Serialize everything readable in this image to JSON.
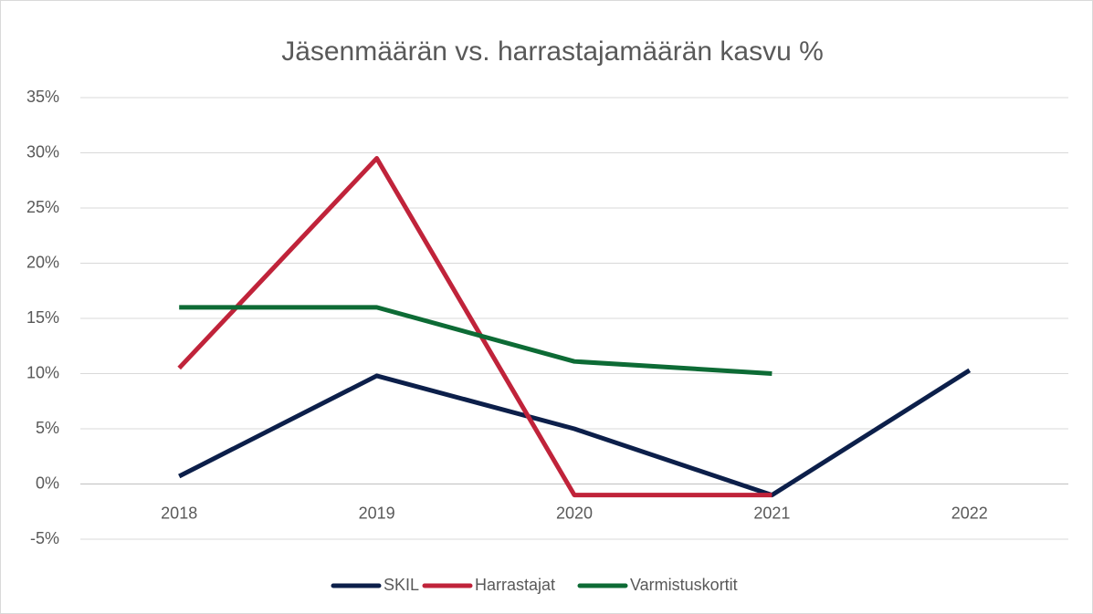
{
  "chart_data": {
    "type": "line",
    "title": "Jäsenmäärän vs. harrastajamäärän kasvu %",
    "categories": [
      "2018",
      "2019",
      "2020",
      "2021",
      "2022"
    ],
    "series": [
      {
        "name": "SKIL",
        "color": "#0c1f4a",
        "values": [
          0.7,
          9.8,
          5.0,
          -1.0,
          10.3
        ]
      },
      {
        "name": "Harrastajat",
        "color": "#c0233a",
        "values": [
          10.5,
          29.5,
          -1.0,
          -1.0,
          null
        ]
      },
      {
        "name": "Varmistuskortit",
        "color": "#0d6b35",
        "values": [
          16,
          16,
          11.1,
          10.0,
          null
        ]
      }
    ],
    "ylim": [
      -5,
      35
    ],
    "yticks": [
      {
        "value": -5,
        "label": "-5%"
      },
      {
        "value": 0,
        "label": "0%"
      },
      {
        "value": 5,
        "label": "5%"
      },
      {
        "value": 10,
        "label": "10%"
      },
      {
        "value": 15,
        "label": "15%"
      },
      {
        "value": 20,
        "label": "20%"
      },
      {
        "value": 25,
        "label": "25%"
      },
      {
        "value": 30,
        "label": "30%"
      },
      {
        "value": 35,
        "label": "35%"
      }
    ],
    "grid": true,
    "legend": "bottom"
  }
}
